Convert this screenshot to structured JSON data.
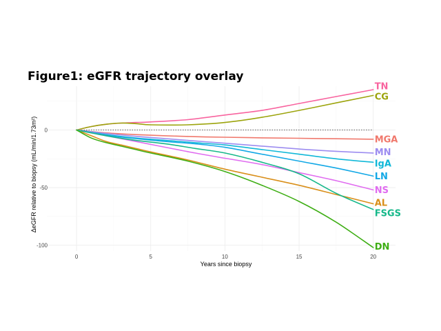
{
  "chart_data": {
    "type": "line",
    "title": "Figure1: eGFR trajectory overlay",
    "xlabel": "Years since biopsy",
    "ylabel": "ΔeGFR relative to biopsy (mL/min/1.73m²)",
    "xlim": [
      -2,
      21.5
    ],
    "ylim": [
      -105,
      38
    ],
    "x_ticks": [
      0,
      5,
      10,
      15,
      20
    ],
    "y_ticks": [
      0,
      -50,
      -100
    ],
    "reference_line_y": 0,
    "grid": true,
    "legend": "direct-labels-right",
    "series": [
      {
        "name": "TN",
        "color": "#F8649F",
        "x": [
          0,
          1,
          2,
          3,
          4,
          5,
          7.5,
          10,
          12.5,
          15,
          17.5,
          20
        ],
        "y": [
          0,
          3,
          5,
          6,
          6.5,
          7,
          9,
          13,
          17,
          23,
          29,
          35
        ]
      },
      {
        "name": "CG",
        "color": "#9CA40C",
        "x": [
          0,
          1,
          2,
          3,
          4,
          5,
          7.5,
          10,
          12.5,
          15,
          17.5,
          20
        ],
        "y": [
          0,
          3,
          5,
          6,
          5.5,
          4.5,
          4.5,
          6.5,
          11,
          17,
          23.5,
          30
        ]
      },
      {
        "name": "MGA",
        "color": "#F0786C",
        "x": [
          0,
          2,
          4,
          6,
          8,
          10,
          12.5,
          15,
          17.5,
          20
        ],
        "y": [
          0,
          -2.5,
          -4,
          -5,
          -5.8,
          -6.3,
          -6.8,
          -7.2,
          -7.6,
          -8
        ]
      },
      {
        "name": "MN",
        "color": "#9C8CF0",
        "x": [
          0,
          2,
          4,
          6,
          8,
          10,
          12.5,
          15,
          17.5,
          20
        ],
        "y": [
          0,
          -3,
          -5.5,
          -7.5,
          -9.5,
          -11.5,
          -14,
          -16.5,
          -18.5,
          -20
        ]
      },
      {
        "name": "IgA",
        "color": "#10B8D8",
        "x": [
          0,
          2,
          4,
          6,
          8,
          10,
          12.5,
          15,
          17.5,
          20
        ],
        "y": [
          0,
          -4,
          -7,
          -9,
          -11,
          -13,
          -17,
          -21,
          -25,
          -28
        ]
      },
      {
        "name": "LN",
        "color": "#12A8E6",
        "x": [
          0,
          2,
          4,
          6,
          8,
          10,
          12.5,
          15,
          17.5,
          20
        ],
        "y": [
          0,
          -4.5,
          -7.5,
          -10,
          -12,
          -15,
          -21,
          -27,
          -33,
          -40
        ]
      },
      {
        "name": "NS",
        "color": "#E06CF0",
        "x": [
          0,
          2,
          4,
          6,
          8,
          10,
          12.5,
          15,
          17.5,
          20
        ],
        "y": [
          0,
          -5,
          -10,
          -15,
          -20,
          -24.5,
          -30,
          -37,
          -44,
          -52
        ]
      },
      {
        "name": "AL",
        "color": "#D98F1A",
        "x": [
          0,
          1,
          2,
          3,
          4,
          5,
          7.5,
          10,
          12.5,
          15,
          17.5,
          20
        ],
        "y": [
          0,
          -5,
          -10,
          -13,
          -16,
          -19,
          -26,
          -34,
          -41,
          -48,
          -56,
          -64
        ]
      },
      {
        "name": "FSGS",
        "color": "#16B88A",
        "x": [
          0,
          2,
          4,
          6,
          8,
          10,
          12.5,
          15,
          17.5,
          20
        ],
        "y": [
          0,
          -5,
          -9,
          -12,
          -16,
          -20,
          -28,
          -38,
          -55,
          -69
        ]
      },
      {
        "name": "DN",
        "color": "#3EAE14",
        "x": [
          0,
          1,
          2,
          3,
          4,
          5,
          7.5,
          10,
          12.5,
          15,
          17.5,
          20
        ],
        "y": [
          0,
          -7,
          -11,
          -14,
          -17,
          -20,
          -27,
          -36,
          -48,
          -62,
          -80,
          -102
        ]
      }
    ],
    "label_values": {
      "TN": 38,
      "CG": 29,
      "MGA": -8,
      "MN": -19,
      "IgA": -29,
      "LN": -40,
      "NS": -52,
      "AL": -63,
      "FSGS": -72,
      "DN": -101
    }
  }
}
